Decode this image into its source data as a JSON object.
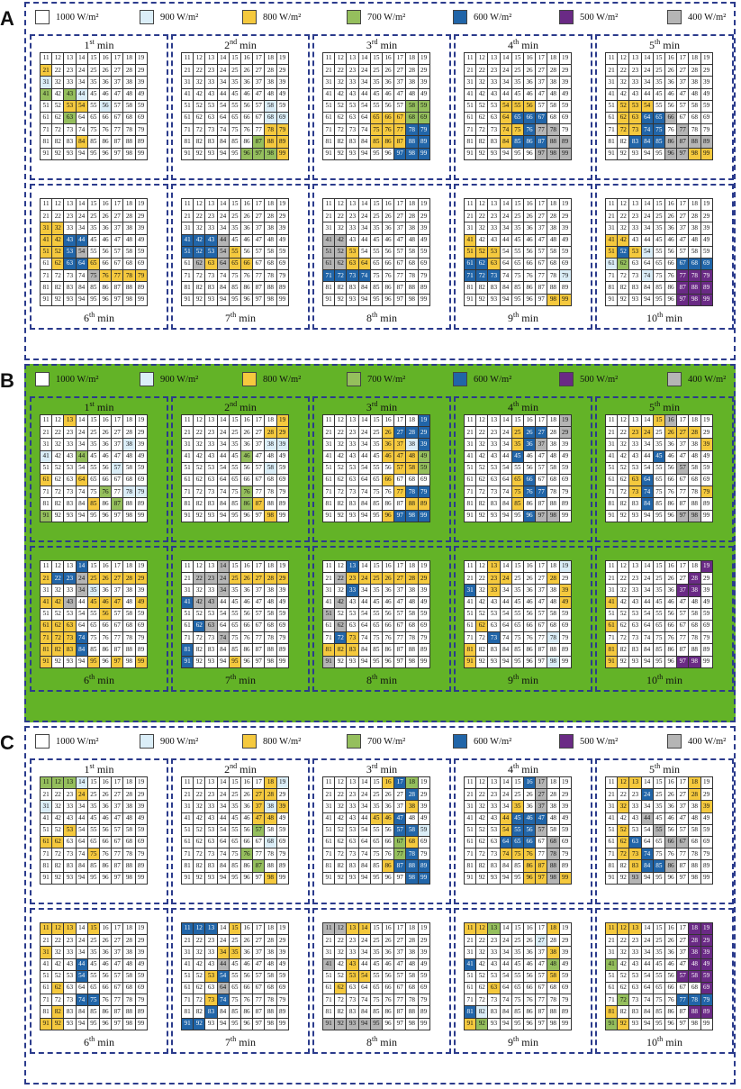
{
  "legend": [
    {
      "label": "1000 W/m²",
      "code": "1",
      "color": "#ffffff"
    },
    {
      "label": "900 W/m²",
      "code": "9",
      "color": "#dbeef8"
    },
    {
      "label": "800 W/m²",
      "code": "8",
      "color": "#f5c93e"
    },
    {
      "label": "700 W/m²",
      "code": "7",
      "color": "#95bf5d"
    },
    {
      "label": "600 W/m²",
      "code": "6",
      "color": "#2165a8"
    },
    {
      "label": "500 W/m²",
      "code": "5",
      "color": "#6a2a85"
    },
    {
      "label": "400 W/m²",
      "code": "4",
      "color": "#b5b5b5"
    }
  ],
  "minutes": [
    "1st min",
    "2nd min",
    "3rd min",
    "4th min",
    "5th min",
    "6th min",
    "7th min",
    "8th min",
    "9th min",
    "10th min"
  ],
  "minute_parts": [
    [
      "1",
      "st"
    ],
    [
      "2",
      "nd"
    ],
    [
      "3",
      "rd"
    ],
    [
      "4",
      "th"
    ],
    [
      "5",
      "th"
    ],
    [
      "6",
      "th"
    ],
    [
      "7",
      "th"
    ],
    [
      "8",
      "th"
    ],
    [
      "9",
      "th"
    ],
    [
      "10",
      "th"
    ]
  ],
  "min_word": "min",
  "panels": [
    {
      "label": "A",
      "green_background": false,
      "grids": [
        [
          "111111111",
          "811111111",
          "911111111",
          "717911111",
          "118819111",
          "117111111",
          "111111111",
          "111811111",
          "111111111"
        ],
        [
          "111111111",
          "111111111",
          "111111111",
          "111111111",
          "111111191",
          "111111199",
          "111111188",
          "111111788",
          "111117778"
        ],
        [
          "111111111",
          "111111111",
          "111111111",
          "111111111",
          "111111177",
          "111188877",
          "111188866",
          "111188866",
          "111111666"
        ],
        [
          "111111111",
          "111111111",
          "111111111",
          "111111111",
          "111888111",
          "111866611",
          "111886441",
          "111866644",
          "111111444"
        ],
        [
          "111111111",
          "111111111",
          "111111111",
          "111111111",
          "188811111",
          "188664111",
          "188661411",
          "116664444",
          "111114488"
        ]
      ],
      "grids2": [
        [
          "111111111",
          "111111111",
          "881111111",
          "886611111",
          "886411111",
          "186681111",
          "111148888",
          "111111111",
          "111111111"
        ],
        [
          "111111111",
          "111111111",
          "111111111",
          "666411111",
          "666481111",
          "148488111",
          "111111111",
          "111111111",
          "111111111"
        ],
        [
          "111111111",
          "111111111",
          "111111111",
          "441111111",
          "448111111",
          "448811111",
          "666611111",
          "111111111",
          "111111111"
        ],
        [
          "111111111",
          "111111111",
          "111111111",
          "811111111",
          "888111111",
          "668111111",
          "666111119",
          "111111111",
          "111111188"
        ],
        [
          "111111111",
          "111111111",
          "111111111",
          "881111111",
          "868911111",
          "971111666",
          "111911555",
          "111111555",
          "111111555"
        ]
      ]
    },
    {
      "label": "B",
      "green_background": true,
      "grids": [
        [
          "118111111",
          "111111111",
          "111111191",
          "911711111",
          "111111911",
          "811811111",
          "111117199",
          "111181711",
          "711111111"
        ],
        [
          "111111118",
          "111111188",
          "111111199",
          "111117111",
          "111111191",
          "111111111",
          "111117111",
          "111117811",
          "111111181"
        ],
        [
          "111111116",
          "111118666",
          "111118896",
          "111118887",
          "111111887",
          "111118111",
          "111111866",
          "111111188",
          "111118666"
        ],
        [
          "111111114",
          "111186614",
          "111186411",
          "111161111",
          "111111111",
          "111186111",
          "111186611",
          "111181111",
          "111116441"
        ],
        [
          "111184111",
          "118818881",
          "111111118",
          "111161111",
          "111111411",
          "118611111",
          "118611118",
          "111611111",
          "111111441"
        ]
      ],
      "grids2": [
        [
          "111611111",
          "866488888",
          "111491111",
          "884188818",
          "111118111",
          "888111111",
          "888611111",
          "888611111",
          "811181818"
        ],
        [
          "111411111",
          "144488888",
          "111411111",
          "644111111",
          "111111111",
          "164111111",
          "111411111",
          "611111111",
          "611181111"
        ],
        [
          "116111111",
          "148888888",
          "116111111",
          "141111111",
          "411111111",
          "141111111",
          "168111111",
          "888111111",
          "411111111"
        ],
        [
          "118111119",
          "118811181",
          "618111118",
          "111111118",
          "111111111",
          "181111111",
          "116111191",
          "811111111",
          "811111191"
        ],
        [
          "111111115",
          "111111151",
          "111111551",
          "811111111",
          "111111111",
          "811111111",
          "111111111",
          "811111111",
          "811111551"
        ]
      ]
    },
    {
      "label": "C",
      "green_background": false,
      "grids": [
        [
          "777911111",
          "111811111",
          "911111111",
          "111111111",
          "118111111",
          "881111111",
          "111181111",
          "111111111",
          "111111111"
        ],
        [
          "111111189",
          "111111881",
          "111111898",
          "111111881",
          "111111711",
          "111111191",
          "111117111",
          "111111711",
          "111111181"
        ],
        [
          "111118671",
          "111111161",
          "111111181",
          "111188611",
          "111111669",
          "111111781",
          "111111761",
          "111118666",
          "111111166"
        ],
        [
          "111116411",
          "111111411",
          "111181411",
          "111866611",
          "111866411",
          "111666141",
          "111888141",
          "111118841",
          "111118848"
        ],
        [
          "188111181",
          "111611181",
          "181111118",
          "111411111",
          "181141111",
          "186114411",
          "188611111",
          "118664111",
          "114111111"
        ]
      ],
      "grids2": [
        [
          "888181111",
          "111111111",
          "811111111",
          "111611111",
          "111611111",
          "181111111",
          "111661111",
          "181111111",
          "881111111"
        ],
        [
          "666181111",
          "111111111",
          "111881111",
          "111411111",
          "118611111",
          "111411111",
          "118611111",
          "116111111",
          "661111111"
        ],
        [
          "448811111",
          "111111111",
          "111111111",
          "418111111",
          "118811111",
          "181111111",
          "111111111",
          "111111111",
          "444441111"
        ],
        [
          "887111181",
          "111111911",
          "111111181",
          "611111171",
          "111111181",
          "118111111",
          "111111111",
          "691111111",
          "871111111"
        ],
        [
          "888111155",
          "111111155",
          "111111155",
          "711111155",
          "111111555",
          "111111115",
          "171111666",
          "811111155",
          "781111111"
        ]
      ]
    }
  ]
}
